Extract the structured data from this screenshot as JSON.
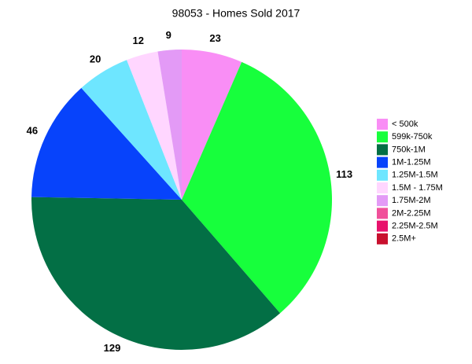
{
  "chart_data": {
    "type": "pie",
    "title": "98053 - Homes Sold 2017",
    "categories": [
      "< 500k",
      "599k-750k",
      "750k-1M",
      "1M-1.25M",
      "1.25M-1.5M",
      "1.5M - 1.75M",
      "1.75M-2M",
      "2M-2.25M",
      "2.25M-2.5M",
      "2.5M+"
    ],
    "values": [
      23,
      113,
      129,
      46,
      20,
      12,
      9,
      0,
      0,
      0
    ],
    "colors": [
      "#f98ef5",
      "#17ff3c",
      "#036f45",
      "#0743fb",
      "#6ee6ff",
      "#ffd6ff",
      "#e39af6",
      "#f0509a",
      "#e8126c",
      "#c8102e"
    ],
    "legend": "right"
  }
}
